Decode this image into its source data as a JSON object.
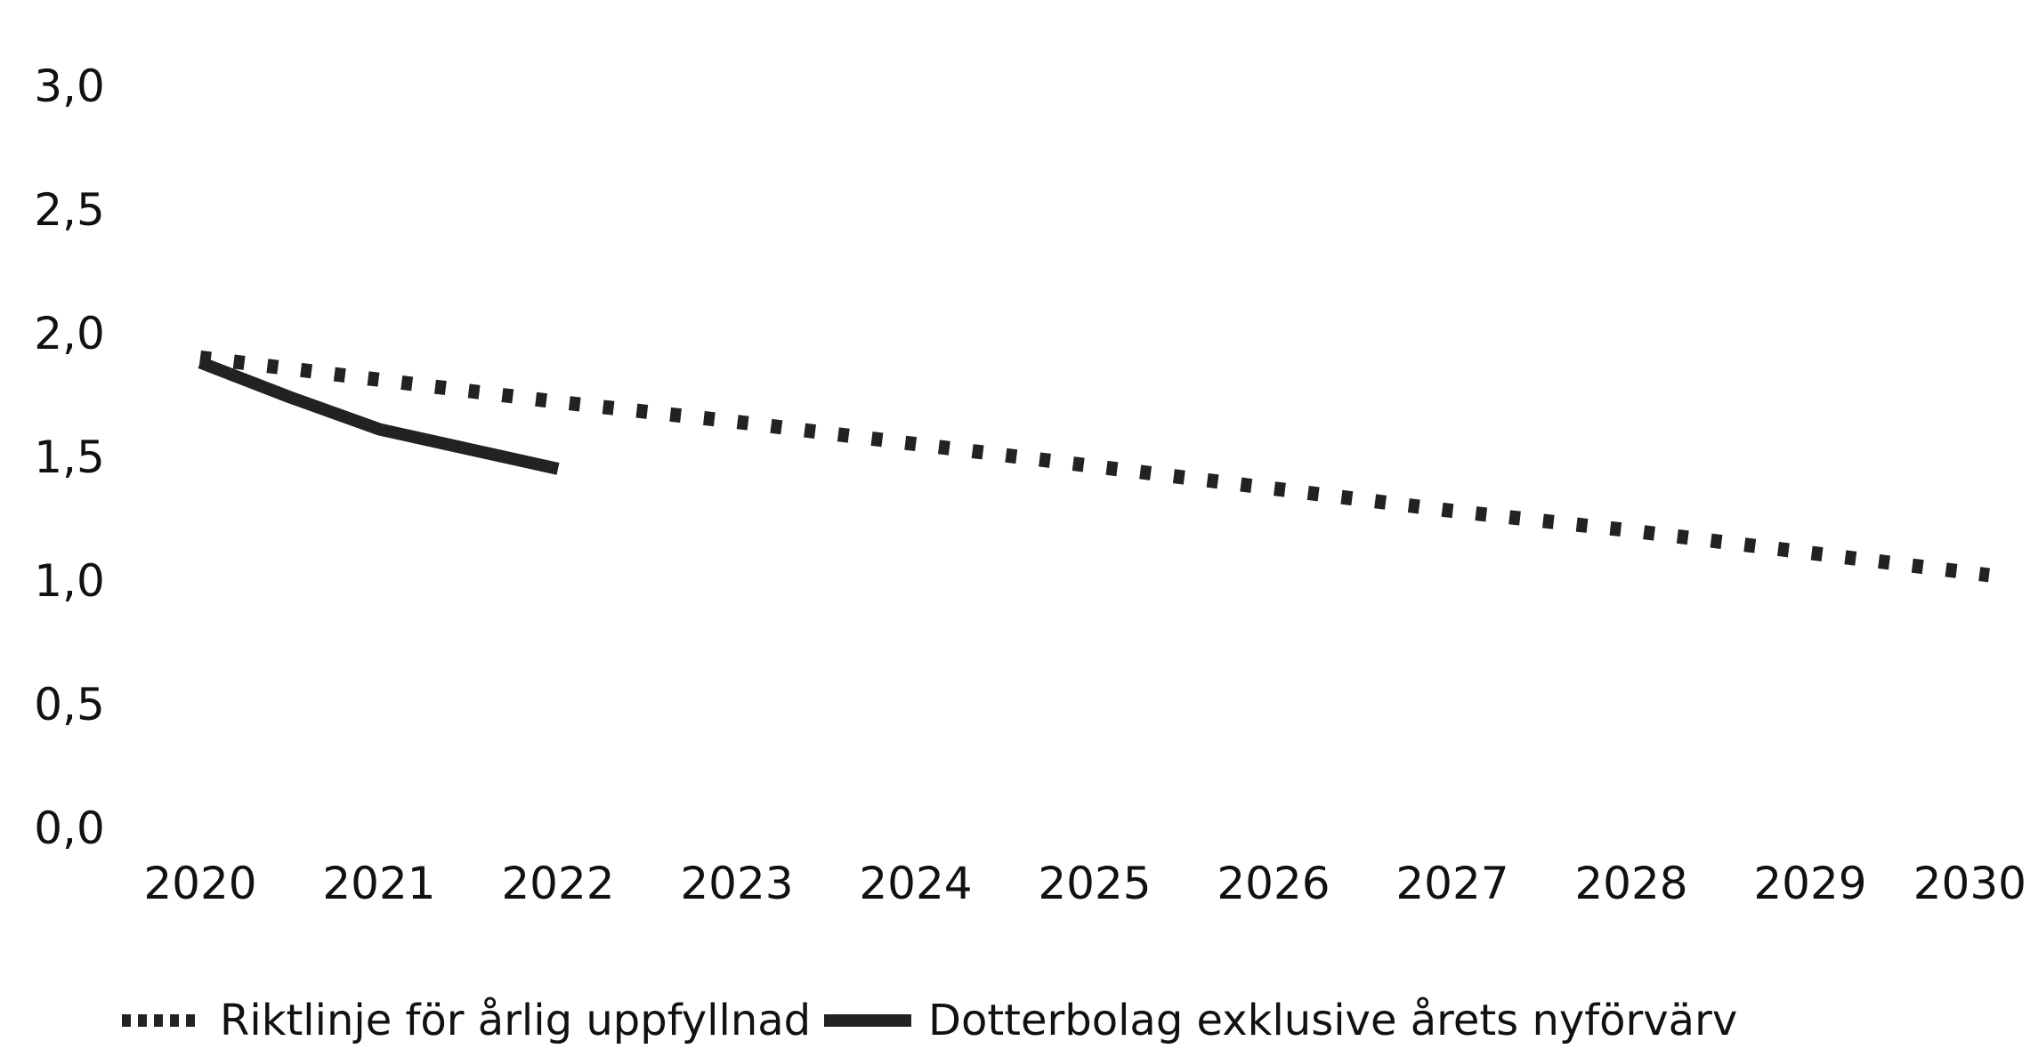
{
  "chart_data": {
    "type": "line",
    "title": "",
    "xlabel": "",
    "ylabel": "",
    "xlim": [
      2020,
      2030
    ],
    "ylim": [
      0,
      3
    ],
    "x_ticks": [
      2020,
      2021,
      2022,
      2023,
      2024,
      2025,
      2026,
      2027,
      2028,
      2029,
      2030
    ],
    "x_tick_labels": [
      "2020",
      "2021",
      "2022",
      "2023",
      "2024",
      "2025",
      "2026",
      "2027",
      "2028",
      "2029",
      "2030"
    ],
    "y_ticks": [
      0,
      0.5,
      1,
      1.5,
      2,
      2.5,
      3
    ],
    "y_tick_labels": [
      "0,0",
      "0,5",
      "1,0",
      "1,5",
      "2,0",
      "2,5",
      "3,0"
    ],
    "grid": false,
    "legend_position": "bottom",
    "series": [
      {
        "name": "Riktlinje för årlig uppfyllnad",
        "style": "dotted",
        "color": "#222222",
        "x": [
          2020,
          2021,
          2022,
          2023,
          2024,
          2025,
          2026,
          2027,
          2028,
          2029,
          2030
        ],
        "y": [
          1.9,
          1.81,
          1.72,
          1.64,
          1.55,
          1.46,
          1.37,
          1.28,
          1.2,
          1.11,
          1.02
        ]
      },
      {
        "name": "Dotterbolag exklusive årets nyförvärv",
        "style": "solid",
        "color": "#222222",
        "x": [
          2020,
          2020.5,
          2021,
          2021.5,
          2022
        ],
        "y": [
          1.88,
          1.74,
          1.61,
          1.53,
          1.45
        ]
      }
    ]
  }
}
